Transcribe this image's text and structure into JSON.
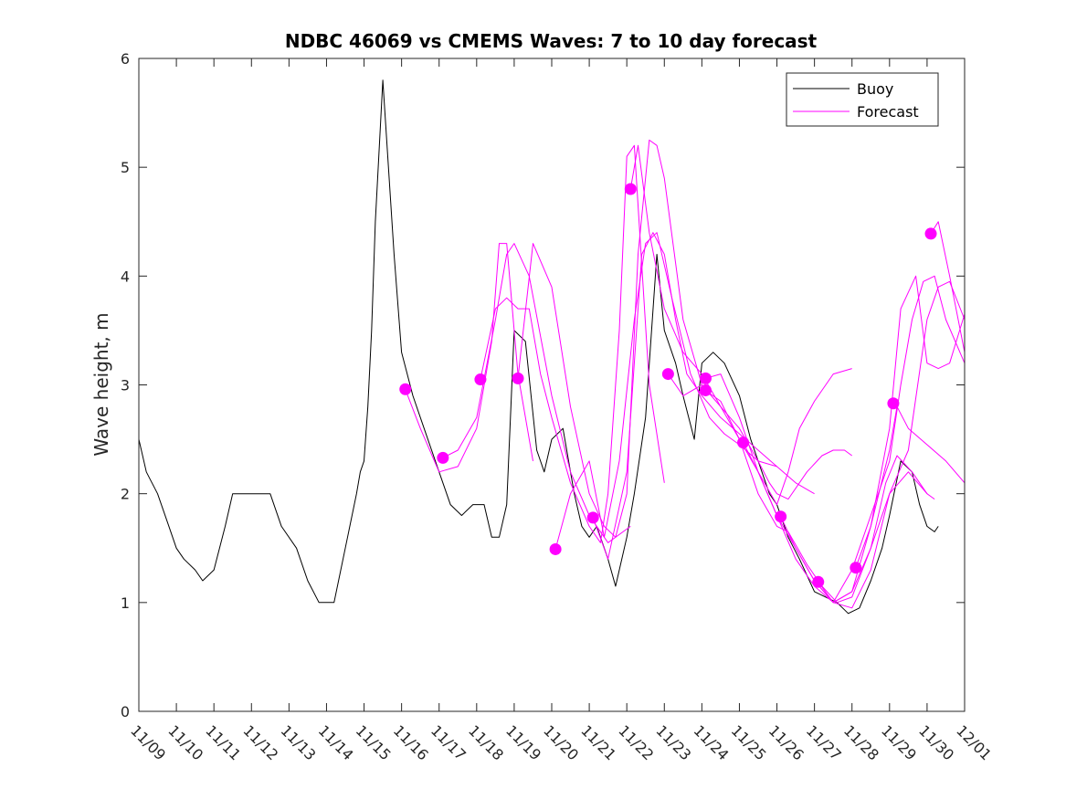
{
  "chart_data": {
    "type": "line",
    "title": "NDBC 46069 vs CMEMS Waves: 7 to 10 day forecast",
    "xlabel": "",
    "ylabel": "Wave height, m",
    "xlim": [
      0,
      22
    ],
    "ylim": [
      0,
      6
    ],
    "x_unit": "days since 11/09 00:00",
    "yticks": [
      0,
      1,
      2,
      3,
      4,
      5,
      6
    ],
    "xtick_labels": [
      "11/09",
      "11/10",
      "11/11",
      "11/12",
      "11/13",
      "11/14",
      "11/15",
      "11/16",
      "11/17",
      "11/18",
      "11/19",
      "11/20",
      "11/21",
      "11/22",
      "11/23",
      "11/24",
      "11/25",
      "11/26",
      "11/27",
      "11/28",
      "11/29",
      "11/30",
      "12/01"
    ],
    "legend": {
      "location": "top-right",
      "entries": [
        {
          "label": "Buoy",
          "color": "#000000"
        },
        {
          "label": "Forecast",
          "color": "#ff00ff"
        }
      ]
    },
    "series": [
      {
        "name": "Buoy",
        "color": "#000000",
        "x": [
          0,
          0.2,
          0.5,
          0.8,
          1.0,
          1.2,
          1.5,
          1.7,
          2.0,
          2.3,
          2.5,
          3.0,
          3.5,
          3.8,
          4.2,
          4.5,
          4.8,
          5.0,
          5.2,
          5.5,
          5.8,
          5.9,
          6.0,
          6.1,
          6.2,
          6.3,
          6.5,
          6.8,
          7.0,
          7.3,
          7.6,
          8.0,
          8.3,
          8.6,
          8.9,
          9.2,
          9.4,
          9.6,
          9.8,
          10.0,
          10.3,
          10.6,
          10.8,
          11.0,
          11.3,
          11.6,
          11.8,
          12.0,
          12.2,
          12.5,
          12.7,
          12.8,
          13.0,
          13.2,
          13.5,
          13.8,
          14.0,
          14.3,
          14.5,
          14.8,
          15.0,
          15.3,
          15.6,
          16.0,
          16.3,
          16.6,
          16.8,
          17.0,
          17.3,
          17.6,
          18.0,
          18.3,
          18.6,
          18.9,
          19.2,
          19.5,
          19.8,
          20.0,
          20.3,
          20.6,
          20.8,
          21.0,
          21.2,
          21.3
        ],
        "y": [
          2.5,
          2.2,
          2.0,
          1.7,
          1.5,
          1.4,
          1.3,
          1.2,
          1.3,
          1.7,
          2.0,
          2.0,
          2.0,
          1.7,
          1.5,
          1.2,
          1.0,
          1.0,
          1.0,
          1.5,
          2.0,
          2.2,
          2.3,
          2.8,
          3.5,
          4.5,
          5.8,
          4.2,
          3.3,
          2.9,
          2.6,
          2.2,
          1.9,
          1.8,
          1.9,
          1.9,
          1.6,
          1.6,
          1.9,
          3.5,
          3.4,
          2.4,
          2.2,
          2.5,
          2.6,
          2.0,
          1.7,
          1.6,
          1.7,
          1.4,
          1.15,
          1.3,
          1.6,
          2.0,
          2.7,
          4.2,
          3.5,
          3.2,
          2.9,
          2.5,
          3.2,
          3.3,
          3.2,
          2.9,
          2.5,
          2.2,
          2.0,
          1.9,
          1.6,
          1.4,
          1.1,
          1.05,
          1.0,
          0.9,
          0.95,
          1.2,
          1.5,
          1.8,
          2.3,
          2.2,
          1.9,
          1.7,
          1.65,
          1.7
        ]
      },
      {
        "name": "Forecast 1",
        "color": "#ff00ff",
        "x": [
          7.1,
          7.5,
          8.0,
          8.5,
          9.0,
          9.4,
          9.6,
          9.8,
          10.1,
          10.5
        ],
        "y": [
          2.96,
          2.6,
          2.2,
          2.25,
          2.6,
          3.4,
          4.3,
          4.3,
          3.1,
          2.3
        ]
      },
      {
        "name": "Forecast 2",
        "color": "#ff00ff",
        "x": [
          8.1,
          8.5,
          9.0,
          9.5,
          9.8,
          10.0,
          10.4,
          11.0,
          11.5,
          12.0,
          12.5,
          13.1
        ],
        "y": [
          2.33,
          2.4,
          2.7,
          3.6,
          4.2,
          4.3,
          4.0,
          2.9,
          2.2,
          1.8,
          1.55,
          1.7
        ]
      },
      {
        "name": "Forecast 3",
        "color": "#ff00ff",
        "x": [
          9.1,
          9.5,
          9.8,
          10.1,
          10.4,
          10.7,
          11.0,
          11.5,
          12.0,
          12.3,
          12.5,
          12.8,
          13.0,
          13.2,
          13.6,
          14.0
        ],
        "y": [
          3.05,
          3.7,
          3.8,
          3.7,
          3.7,
          3.1,
          2.7,
          2.1,
          1.7,
          1.55,
          2.0,
          3.5,
          5.1,
          5.2,
          3.0,
          2.1
        ]
      },
      {
        "name": "Forecast 4",
        "color": "#ff00ff",
        "x": [
          10.1,
          10.5,
          11.0,
          11.5,
          12.0,
          12.4,
          12.7,
          13.0,
          13.3,
          13.6,
          13.8,
          14.0,
          14.5,
          15.0
        ],
        "y": [
          3.06,
          4.3,
          3.9,
          2.8,
          2.0,
          1.7,
          1.6,
          2.0,
          4.2,
          5.25,
          5.2,
          4.9,
          3.6,
          3.0
        ]
      },
      {
        "name": "Forecast 5",
        "color": "#ff00ff",
        "x": [
          11.1,
          11.5,
          12.0,
          12.4,
          12.8,
          13.2,
          13.5,
          13.8,
          14.2,
          14.7,
          15.2,
          15.6,
          16.0,
          16.5,
          17.0
        ],
        "y": [
          1.49,
          2.0,
          2.3,
          1.6,
          2.3,
          3.6,
          4.3,
          4.4,
          3.8,
          3.1,
          2.7,
          2.55,
          2.45,
          2.3,
          2.25
        ]
      },
      {
        "name": "Forecast 6",
        "color": "#ff00ff",
        "x": [
          12.1,
          12.5,
          13.0,
          13.4,
          13.7,
          14.0,
          14.3,
          14.6,
          15.0,
          15.5,
          16.0,
          16.5,
          17.0,
          17.5,
          18.0
        ],
        "y": [
          1.78,
          1.4,
          2.2,
          4.2,
          4.4,
          4.2,
          3.6,
          3.1,
          2.9,
          2.7,
          2.55,
          2.4,
          2.25,
          2.1,
          2.0
        ]
      },
      {
        "name": "Forecast 7",
        "color": "#ff00ff",
        "x": [
          13.1,
          13.3,
          13.6,
          14.0,
          14.5,
          15.0,
          15.5,
          16.0,
          16.5,
          16.8,
          17.0,
          17.3,
          17.8,
          18.2,
          18.5,
          18.8,
          19.0
        ],
        "y": [
          4.8,
          5.2,
          4.4,
          3.7,
          3.3,
          3.1,
          2.8,
          2.6,
          2.3,
          2.1,
          2.0,
          1.95,
          2.2,
          2.35,
          2.4,
          2.4,
          2.35
        ]
      },
      {
        "name": "Forecast 8",
        "color": "#ff00ff",
        "x": [
          14.1,
          14.5,
          15.0,
          15.5,
          16.0,
          16.5,
          17.0,
          17.3,
          17.6,
          18.0,
          18.5,
          19.0
        ],
        "y": [
          3.1,
          2.9,
          3.0,
          2.8,
          2.5,
          2.2,
          1.9,
          2.2,
          2.6,
          2.85,
          3.1,
          3.15
        ]
      },
      {
        "name": "Forecast 9",
        "color": "#ff00ff",
        "x": [
          15.1,
          15.5,
          16.0,
          16.5,
          17.0,
          17.5,
          18.0,
          18.5,
          19.0,
          19.5,
          20.0,
          20.5,
          21.0,
          21.2
        ],
        "y": [
          3.06,
          3.1,
          2.7,
          2.2,
          1.8,
          1.5,
          1.2,
          1.0,
          1.1,
          1.5,
          2.0,
          2.2,
          2.0,
          1.95
        ]
      },
      {
        "name": "Forecast 10",
        "color": "#ff00ff",
        "x": [
          15.1,
          15.5,
          16.0,
          16.5,
          17.0,
          17.3,
          17.8,
          18.2,
          18.6,
          19.0,
          19.5,
          19.9,
          20.2,
          20.6,
          21.0
        ],
        "y": [
          2.95,
          2.85,
          2.5,
          2.0,
          1.7,
          1.65,
          1.35,
          1.15,
          1.0,
          1.05,
          1.5,
          2.1,
          2.35,
          2.2,
          2.0
        ]
      },
      {
        "name": "Forecast 11",
        "color": "#ff00ff",
        "x": [
          16.1,
          16.5,
          17.0,
          17.5,
          18.0,
          18.5,
          19.0,
          19.5,
          20.0,
          20.3,
          20.6,
          20.9,
          21.2,
          21.5,
          22.0
        ],
        "y": [
          2.47,
          2.2,
          1.8,
          1.4,
          1.15,
          1.0,
          1.3,
          1.8,
          2.3,
          3.0,
          3.6,
          3.95,
          4.0,
          3.6,
          3.2
        ]
      },
      {
        "name": "Forecast 12",
        "color": "#ff00ff",
        "x": [
          17.1,
          17.5,
          18.0,
          18.5,
          19.0,
          19.5,
          20.0,
          20.5,
          21.0,
          21.3,
          21.6,
          22.0
        ],
        "y": [
          1.79,
          1.5,
          1.2,
          1.0,
          0.95,
          1.3,
          2.0,
          2.4,
          3.6,
          3.9,
          3.95,
          3.6
        ]
      },
      {
        "name": "Forecast 13",
        "color": "#ff00ff",
        "x": [
          18.1,
          18.5,
          19.0,
          19.5,
          20.0,
          20.3,
          20.7,
          21.0,
          21.3,
          21.6,
          22.0
        ],
        "y": [
          1.19,
          1.0,
          1.1,
          1.7,
          2.6,
          3.7,
          4.0,
          3.2,
          3.15,
          3.2,
          3.65
        ]
      },
      {
        "name": "Forecast 14",
        "color": "#ff00ff",
        "x": [
          19.1,
          19.5,
          20.0,
          20.2,
          20.5,
          21.0,
          21.5,
          22.0
        ],
        "y": [
          1.32,
          1.7,
          2.4,
          2.8,
          2.6,
          2.45,
          2.3,
          2.1
        ]
      },
      {
        "name": "Forecast 15",
        "color": "#ff00ff",
        "x": [
          21.1,
          21.3,
          21.6,
          22.0
        ],
        "y": [
          4.39,
          4.5,
          4.0,
          3.3
        ]
      }
    ],
    "forecast_start_markers": {
      "x": [
        7.1,
        8.1,
        9.1,
        10.1,
        11.1,
        12.1,
        13.1,
        14.1,
        15.1,
        15.1,
        16.1,
        17.1,
        18.1,
        19.1,
        20.1,
        21.1
      ],
      "y": [
        2.96,
        2.33,
        3.05,
        3.06,
        1.49,
        1.78,
        4.8,
        3.1,
        3.06,
        2.95,
        2.47,
        1.79,
        1.19,
        1.32,
        2.83,
        4.39
      ],
      "color": "#ff00ff"
    }
  }
}
